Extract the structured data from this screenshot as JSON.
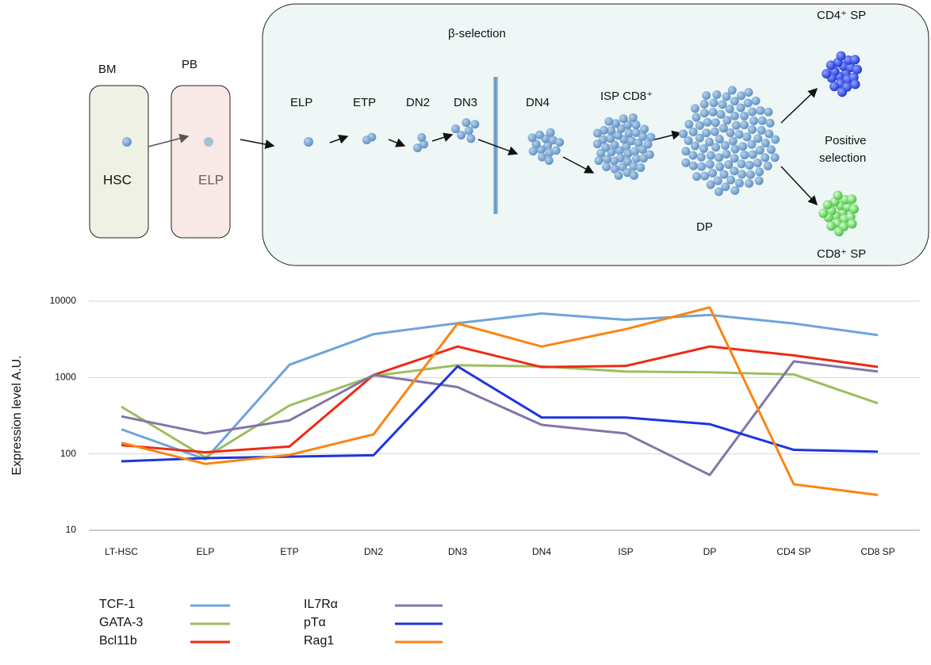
{
  "diagram": {
    "labels": [
      "BM",
      "PB",
      "HSC",
      "ELP",
      "β-selection",
      "ELP",
      "ETP",
      "DN2",
      "DN3",
      "DN4",
      "ISP CD8⁺",
      "DP",
      "CD4⁺ SP",
      "CD8⁺ SP",
      "Positive",
      "selection"
    ]
  },
  "chart_data": {
    "type": "line",
    "y_label": "Expression level A.U.",
    "categories": [
      "LT-HSC",
      "ELP",
      "ETP",
      "DN2",
      "DN3",
      "DN4",
      "ISP",
      "DP",
      "CD4 SP",
      "CD8 SP"
    ],
    "log_scale": true,
    "ylim": [
      10,
      10000
    ],
    "yticks": [
      10,
      100,
      1000,
      10000
    ],
    "grid": true,
    "legend": "bottom-left",
    "series": [
      {
        "name": "TCF-1",
        "color": "#6fa3dc",
        "values": [
          210,
          85,
          1470,
          3700,
          5150,
          6900,
          5700,
          6600,
          5100,
          3600
        ]
      },
      {
        "name": "GATA-3",
        "color": "#9cbe5e",
        "values": [
          415,
          90,
          430,
          1050,
          1450,
          1400,
          1200,
          1170,
          1100,
          460
        ]
      },
      {
        "name": "Bcl11b",
        "color": "#ee2a14",
        "values": [
          130,
          105,
          125,
          1080,
          2550,
          1370,
          1420,
          2550,
          1950,
          1380
        ]
      },
      {
        "name": "IL7Rα",
        "color": "#8176a8",
        "values": [
          310,
          185,
          275,
          1080,
          750,
          240,
          185,
          53,
          1630,
          1200
        ]
      },
      {
        "name": "pTα",
        "color": "#1c35e0",
        "values": [
          80,
          88,
          92,
          96,
          1400,
          300,
          300,
          245,
          113,
          107
        ]
      },
      {
        "name": "Rag1",
        "color": "#fa8512",
        "values": [
          140,
          74,
          97,
          180,
          5100,
          2550,
          4300,
          8300,
          40,
          29
        ]
      }
    ]
  }
}
